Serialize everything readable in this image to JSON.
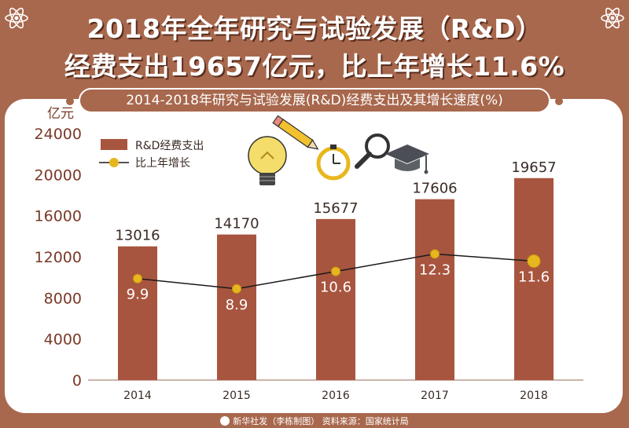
{
  "headline": {
    "line1": "2018年全年研究与试验发展（R&D）",
    "line2": "经费支出19657亿元，比上年增长11.6%"
  },
  "colors": {
    "background": "#a8684d",
    "bar": "#a8553f",
    "line": "#1a1a1a",
    "marker": "#e8b61e",
    "axis_text": "#7a3a28"
  },
  "icons": [
    "atom-icon",
    "lightbulb-icon",
    "pencil-icon",
    "stopwatch-icon",
    "magnifier-icon",
    "graduation-cap-icon",
    "xinhua-logo-icon"
  ],
  "footer": "新华社发（李栋制图） 资料来源：国家统计局",
  "chart_data": {
    "type": "bar",
    "title": "2014-2018年研究与试验发展(R&D)经费支出及其增长速度(%)",
    "ylabel": "亿元",
    "categories": [
      "2014",
      "2015",
      "2016",
      "2017",
      "2018"
    ],
    "ylim": [
      0,
      24000
    ],
    "yticks": [
      0,
      4000,
      8000,
      12000,
      16000,
      20000,
      24000
    ],
    "grid": false,
    "legend_position": "top-left",
    "series": [
      {
        "name": "R&D经费支出",
        "type": "bar",
        "values": [
          13016,
          14170,
          15677,
          17606,
          19657
        ]
      },
      {
        "name": "比上年增长",
        "type": "line",
        "values": [
          9.9,
          8.9,
          10.6,
          12.3,
          11.6
        ]
      }
    ]
  }
}
